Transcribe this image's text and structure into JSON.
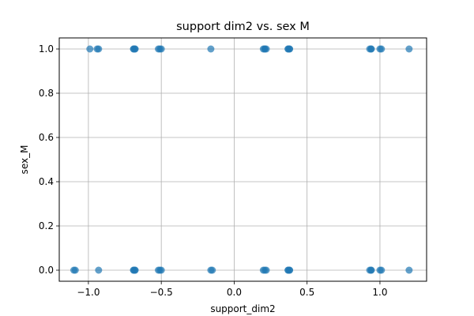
{
  "chart_data": {
    "type": "scatter",
    "title": "support dim2 vs. sex M",
    "xlabel": "support_dim2",
    "ylabel": "sex_M",
    "xlim": [
      -1.2,
      1.32
    ],
    "ylim": [
      -0.05,
      1.05
    ],
    "xticks": [
      -1.0,
      -0.5,
      0.0,
      0.5,
      1.0
    ],
    "xtick_labels": [
      "−1.0",
      "−0.5",
      "0.0",
      "0.5",
      "1.0"
    ],
    "yticks": [
      0.0,
      0.2,
      0.4,
      0.6,
      0.8,
      1.0
    ],
    "ytick_labels": [
      "0.0",
      "0.2",
      "0.4",
      "0.6",
      "0.8",
      "1.0"
    ],
    "grid": true,
    "marker_color": "#1f77b4",
    "marker_alpha": 0.7,
    "series": [
      {
        "x": [
          -0.99,
          -0.94,
          -0.93,
          -0.69,
          -0.69,
          -0.68,
          -0.68,
          -0.52,
          -0.51,
          -0.5,
          -0.16,
          0.2,
          0.21,
          0.21,
          0.22,
          0.37,
          0.37,
          0.38,
          0.38,
          0.93,
          0.94,
          0.94,
          1.0,
          1.01,
          1.2
        ],
        "y": [
          1,
          1,
          1,
          1,
          1,
          1,
          1,
          1,
          1,
          1,
          1,
          1,
          1,
          1,
          1,
          1,
          1,
          1,
          1,
          1,
          1,
          1,
          1,
          1,
          1
        ]
      },
      {
        "x": [
          -1.1,
          -1.09,
          -0.93,
          -0.69,
          -0.69,
          -0.68,
          -0.68,
          -0.52,
          -0.51,
          -0.5,
          -0.16,
          -0.15,
          0.2,
          0.21,
          0.22,
          0.37,
          0.37,
          0.38,
          0.38,
          0.93,
          0.94,
          0.94,
          1.0,
          1.01,
          1.2
        ],
        "y": [
          0,
          0,
          0,
          0,
          0,
          0,
          0,
          0,
          0,
          0,
          0,
          0,
          0,
          0,
          0,
          0,
          0,
          0,
          0,
          0,
          0,
          0,
          0,
          0,
          0
        ]
      }
    ]
  }
}
